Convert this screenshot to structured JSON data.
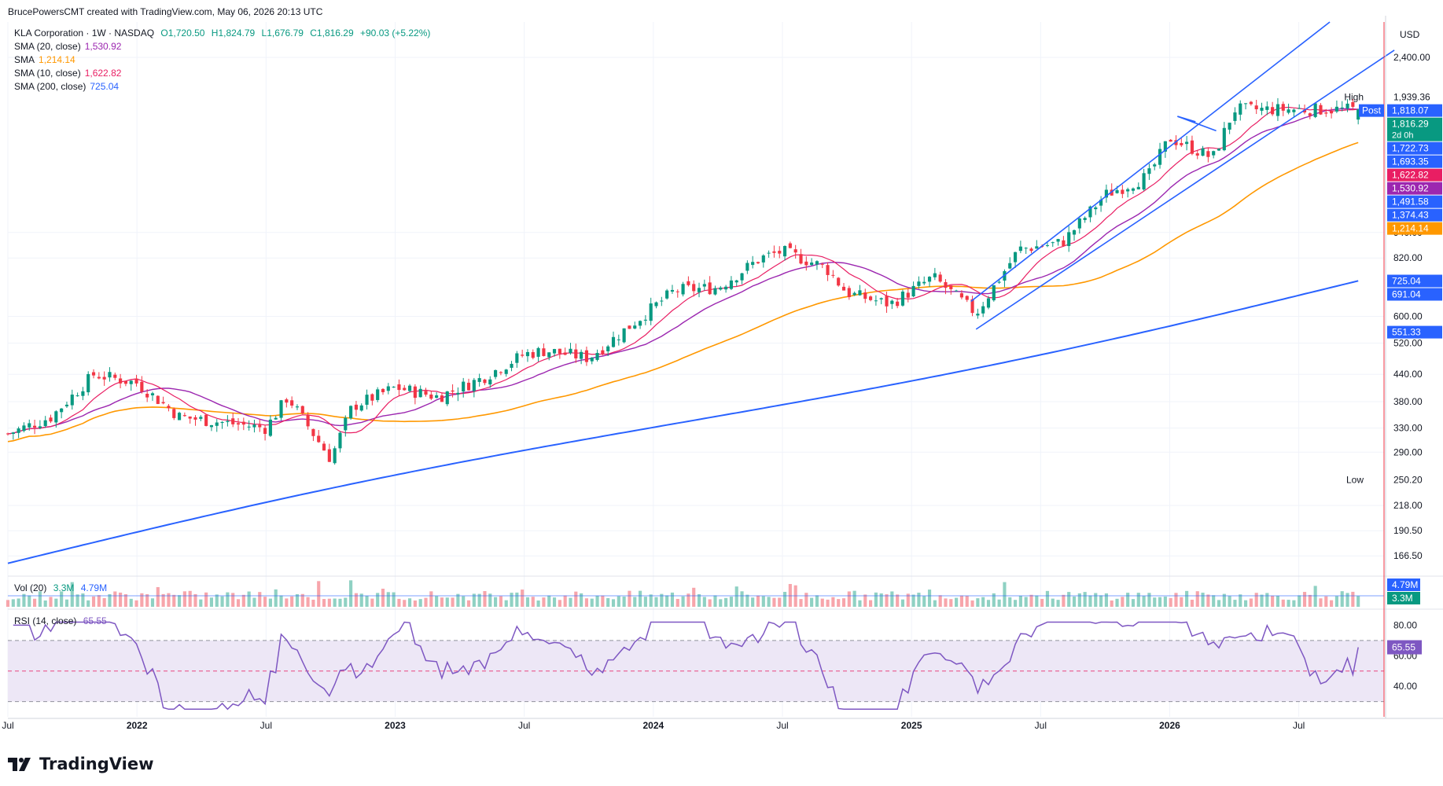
{
  "header": {
    "attribution": "BrucePowersCMT created with TradingView.com, May 06, 2026 20:13 UTC"
  },
  "legend": {
    "symbol": "KLA Corporation · 1W · NASDAQ",
    "open": "O1,720.50",
    "high": "H1,824.79",
    "low": "L1,676.79",
    "close": "C1,816.29",
    "change": "+90.03 (+5.22%)",
    "sma20_label": "SMA (20, close)",
    "sma20_value": "1,530.92",
    "sma_label": "SMA",
    "sma_value": "1,214.14",
    "sma10_label": "SMA (10, close)",
    "sma10_value": "1,622.82",
    "sma200_label": "SMA (200, close)",
    "sma200_value": "725.04"
  },
  "volume_legend": {
    "label": "Vol (20)",
    "v1": "3.3M",
    "v2": "4.79M"
  },
  "rsi_legend": {
    "label": "RSI (14, close)",
    "value": "65.55"
  },
  "logo": {
    "text": "TradingView"
  },
  "colors": {
    "up": "#089981",
    "down": "#f23645",
    "sma20": "#9c27b0",
    "sma50": "#ff9800",
    "sma10": "#e91e63",
    "sma200": "#2962ff",
    "channel": "#2962ff",
    "rsi": "#7e57c2",
    "rsi_band": "#ede7f6",
    "grid": "#f0f3fa",
    "vol_up": "#8fd1c3",
    "vol_down": "#f7a5ab"
  },
  "chart_data": {
    "type": "candlestick",
    "interval": "1W",
    "scale": "log",
    "currency": "USD",
    "x_ticks": [
      "Jul",
      "2022",
      "Jul",
      "2023",
      "Jul",
      "2024",
      "Jul",
      "2025",
      "Jul",
      "2026",
      "Jul"
    ],
    "y_ticks": [
      "2,400.00",
      "940.00",
      "820.00",
      "600.00",
      "520.00",
      "440.00",
      "380.00",
      "330.00",
      "290.00",
      "218.00",
      "190.50",
      "166.50"
    ],
    "y_ticks_values": [
      2400,
      940,
      820,
      600,
      520,
      440,
      380,
      330,
      290,
      218,
      190.5,
      166.5
    ],
    "ylim": [
      150,
      2900
    ],
    "closes_approx": [
      {
        "date": "2021-07",
        "close": 320
      },
      {
        "date": "2021-09",
        "close": 350
      },
      {
        "date": "2021-11",
        "close": 440
      },
      {
        "date": "2022-01",
        "close": 420
      },
      {
        "date": "2022-03",
        "close": 350
      },
      {
        "date": "2022-05",
        "close": 340
      },
      {
        "date": "2022-07",
        "close": 330
      },
      {
        "date": "2022-08",
        "close": 390
      },
      {
        "date": "2022-10",
        "close": 280
      },
      {
        "date": "2022-11",
        "close": 370
      },
      {
        "date": "2023-01",
        "close": 410
      },
      {
        "date": "2023-03",
        "close": 390
      },
      {
        "date": "2023-05",
        "close": 430
      },
      {
        "date": "2023-07",
        "close": 490
      },
      {
        "date": "2023-08",
        "close": 500
      },
      {
        "date": "2023-10",
        "close": 480
      },
      {
        "date": "2023-12",
        "close": 575
      },
      {
        "date": "2024-02",
        "close": 690
      },
      {
        "date": "2024-04",
        "close": 700
      },
      {
        "date": "2024-06",
        "close": 820
      },
      {
        "date": "2024-07",
        "close": 850
      },
      {
        "date": "2024-09",
        "close": 780
      },
      {
        "date": "2024-10",
        "close": 680
      },
      {
        "date": "2024-12",
        "close": 640
      },
      {
        "date": "2025-02",
        "close": 740
      },
      {
        "date": "2025-04",
        "close": 610
      },
      {
        "date": "2025-06",
        "close": 860
      },
      {
        "date": "2025-08",
        "close": 890
      },
      {
        "date": "2025-10",
        "close": 1150
      },
      {
        "date": "2025-12",
        "close": 1270
      },
      {
        "date": "2026-01",
        "close": 1560
      },
      {
        "date": "2026-03",
        "close": 1400
      },
      {
        "date": "2026-04",
        "close": 1816.29
      }
    ],
    "sma200_end": 725.04,
    "price_labels": [
      {
        "text": "High",
        "value": "1,939.36",
        "y": 1939.36
      },
      {
        "text": "Post",
        "value": "1,818.07",
        "y": 1818.07
      },
      {
        "value": "1,816.29",
        "sub": "2d 0h",
        "y": 1816.29
      },
      {
        "value": "1,722.73",
        "y": 1722.73
      },
      {
        "value": "1,693.35",
        "y": 1693.35
      },
      {
        "value": "1,622.82",
        "y": 1622.82
      },
      {
        "value": "1,530.92",
        "y": 1530.92
      },
      {
        "value": "1,491.58",
        "y": 1491.58
      },
      {
        "value": "1,374.43",
        "y": 1374.43
      },
      {
        "value": "1,214.14",
        "y": 1214.14
      },
      {
        "value": "725.04",
        "y": 725.04
      },
      {
        "value": "691.04",
        "y": 691.04
      },
      {
        "value": "551.33",
        "y": 551.33
      },
      {
        "text": "Low",
        "value": "250.20",
        "y": 250.2
      }
    ],
    "volume": {
      "last": "3.3M",
      "sma": "4.79M"
    },
    "rsi": {
      "value": 65.55,
      "levels": [
        70,
        50,
        30
      ],
      "y_ticks": [
        "80.00",
        "60.00",
        "40.00"
      ],
      "y_ticks_values": [
        80,
        60,
        40
      ]
    }
  }
}
